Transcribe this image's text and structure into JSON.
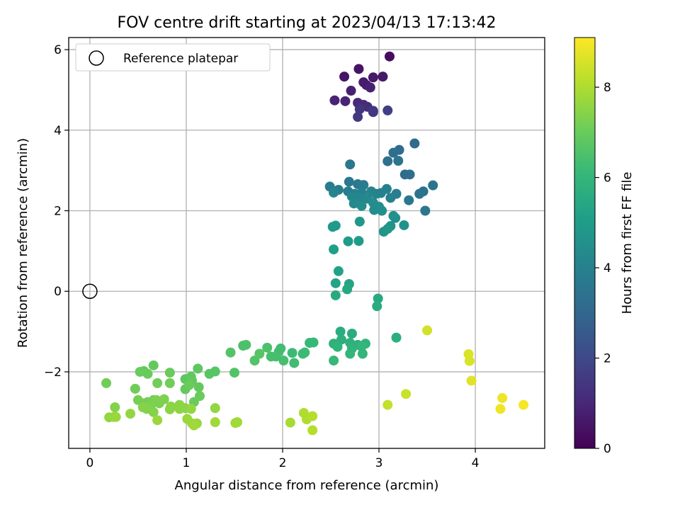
{
  "chart_data": {
    "type": "scatter",
    "title": "FOV centre drift starting at 2023/04/13 17:13:42",
    "xlabel": "Angular distance from reference (arcmin)",
    "ylabel": "Rotation from reference (arcmin)",
    "xlim": [
      -0.22,
      4.72
    ],
    "ylim": [
      -3.9,
      6.3
    ],
    "xticks": [
      0,
      1,
      2,
      3,
      4
    ],
    "yticks": [
      -2,
      0,
      2,
      4,
      6
    ],
    "grid": true,
    "colormap": "viridis",
    "colorbar": {
      "label": "Hours from first FF file",
      "range": [
        0,
        9.1
      ],
      "ticks": [
        0,
        2,
        4,
        6,
        8
      ]
    },
    "legend": {
      "position": "top-left",
      "entries": [
        {
          "label": "Reference platepar",
          "marker": "open-circle"
        }
      ]
    },
    "reference_point": {
      "x": 0,
      "y": 0
    },
    "points": [
      {
        "x": 3.11,
        "y": 5.83,
        "c": 0.3
      },
      {
        "x": 2.64,
        "y": 5.33,
        "c": 0.5
      },
      {
        "x": 2.79,
        "y": 5.52,
        "c": 0.5
      },
      {
        "x": 2.94,
        "y": 5.31,
        "c": 0.6
      },
      {
        "x": 3.04,
        "y": 5.33,
        "c": 0.6
      },
      {
        "x": 2.84,
        "y": 5.19,
        "c": 0.7
      },
      {
        "x": 2.87,
        "y": 5.12,
        "c": 0.7
      },
      {
        "x": 2.71,
        "y": 4.98,
        "c": 0.8
      },
      {
        "x": 2.91,
        "y": 5.06,
        "c": 0.8
      },
      {
        "x": 2.54,
        "y": 4.74,
        "c": 0.9
      },
      {
        "x": 2.65,
        "y": 4.72,
        "c": 0.9
      },
      {
        "x": 2.78,
        "y": 4.68,
        "c": 1.0
      },
      {
        "x": 2.84,
        "y": 4.63,
        "c": 1.1
      },
      {
        "x": 2.88,
        "y": 4.58,
        "c": 1.2
      },
      {
        "x": 2.94,
        "y": 4.45,
        "c": 1.3
      },
      {
        "x": 2.8,
        "y": 4.52,
        "c": 1.4
      },
      {
        "x": 2.78,
        "y": 4.33,
        "c": 1.5
      },
      {
        "x": 2.94,
        "y": 4.48,
        "c": 1.5
      },
      {
        "x": 3.09,
        "y": 4.49,
        "c": 1.7
      },
      {
        "x": 3.37,
        "y": 3.67,
        "c": 3.1
      },
      {
        "x": 3.21,
        "y": 3.51,
        "c": 3.2
      },
      {
        "x": 3.15,
        "y": 3.44,
        "c": 3.3
      },
      {
        "x": 3.09,
        "y": 3.23,
        "c": 3.4
      },
      {
        "x": 3.2,
        "y": 3.24,
        "c": 3.5
      },
      {
        "x": 2.7,
        "y": 3.15,
        "c": 3.6
      },
      {
        "x": 3.27,
        "y": 2.9,
        "c": 3.2
      },
      {
        "x": 3.32,
        "y": 2.9,
        "c": 3.3
      },
      {
        "x": 3.56,
        "y": 2.63,
        "c": 3.5
      },
      {
        "x": 3.46,
        "y": 2.48,
        "c": 3.4
      },
      {
        "x": 3.42,
        "y": 2.42,
        "c": 3.5
      },
      {
        "x": 3.31,
        "y": 2.26,
        "c": 3.6
      },
      {
        "x": 3.48,
        "y": 2.0,
        "c": 3.6
      },
      {
        "x": 2.69,
        "y": 2.72,
        "c": 3.7
      },
      {
        "x": 2.78,
        "y": 2.66,
        "c": 3.7
      },
      {
        "x": 2.84,
        "y": 2.64,
        "c": 3.8
      },
      {
        "x": 2.49,
        "y": 2.6,
        "c": 3.8
      },
      {
        "x": 2.58,
        "y": 2.52,
        "c": 3.9
      },
      {
        "x": 2.68,
        "y": 2.48,
        "c": 3.9
      },
      {
        "x": 2.75,
        "y": 2.42,
        "c": 4.0
      },
      {
        "x": 2.82,
        "y": 2.45,
        "c": 4.0
      },
      {
        "x": 2.92,
        "y": 2.48,
        "c": 4.1
      },
      {
        "x": 2.97,
        "y": 2.42,
        "c": 4.1
      },
      {
        "x": 3.02,
        "y": 2.44,
        "c": 4.0
      },
      {
        "x": 3.08,
        "y": 2.54,
        "c": 4.0
      },
      {
        "x": 3.18,
        "y": 2.42,
        "c": 3.9
      },
      {
        "x": 3.12,
        "y": 2.32,
        "c": 4.0
      },
      {
        "x": 2.53,
        "y": 2.45,
        "c": 4.1
      },
      {
        "x": 2.72,
        "y": 2.35,
        "c": 4.2
      },
      {
        "x": 2.8,
        "y": 2.33,
        "c": 4.2
      },
      {
        "x": 2.88,
        "y": 2.3,
        "c": 4.3
      },
      {
        "x": 2.74,
        "y": 2.18,
        "c": 4.3
      },
      {
        "x": 2.82,
        "y": 2.12,
        "c": 4.4
      },
      {
        "x": 2.94,
        "y": 2.2,
        "c": 4.4
      },
      {
        "x": 3.0,
        "y": 2.1,
        "c": 4.5
      },
      {
        "x": 2.95,
        "y": 2.02,
        "c": 4.4
      },
      {
        "x": 3.03,
        "y": 2.0,
        "c": 4.5
      },
      {
        "x": 3.15,
        "y": 1.87,
        "c": 4.5
      },
      {
        "x": 3.17,
        "y": 1.82,
        "c": 4.6
      },
      {
        "x": 3.26,
        "y": 1.64,
        "c": 4.6
      },
      {
        "x": 3.12,
        "y": 1.62,
        "c": 4.7
      },
      {
        "x": 3.05,
        "y": 1.48,
        "c": 4.7
      },
      {
        "x": 3.09,
        "y": 1.55,
        "c": 4.8
      },
      {
        "x": 2.8,
        "y": 1.73,
        "c": 4.8
      },
      {
        "x": 2.52,
        "y": 1.6,
        "c": 4.9
      },
      {
        "x": 2.55,
        "y": 1.63,
        "c": 4.9
      },
      {
        "x": 2.68,
        "y": 1.24,
        "c": 5.0
      },
      {
        "x": 2.79,
        "y": 1.25,
        "c": 5.0
      },
      {
        "x": 2.53,
        "y": 1.04,
        "c": 5.1
      },
      {
        "x": 2.58,
        "y": 0.5,
        "c": 5.2
      },
      {
        "x": 2.55,
        "y": 0.2,
        "c": 5.3
      },
      {
        "x": 2.69,
        "y": 0.18,
        "c": 5.3
      },
      {
        "x": 2.67,
        "y": 0.05,
        "c": 5.4
      },
      {
        "x": 2.55,
        "y": -0.1,
        "c": 5.5
      },
      {
        "x": 2.99,
        "y": -0.18,
        "c": 5.5
      },
      {
        "x": 2.98,
        "y": -0.37,
        "c": 5.6
      },
      {
        "x": 2.6,
        "y": -1.0,
        "c": 5.6
      },
      {
        "x": 2.72,
        "y": -1.05,
        "c": 5.6
      },
      {
        "x": 2.61,
        "y": -1.2,
        "c": 5.7
      },
      {
        "x": 3.18,
        "y": -1.15,
        "c": 5.7
      },
      {
        "x": 2.7,
        "y": -1.28,
        "c": 5.8
      },
      {
        "x": 2.53,
        "y": -1.3,
        "c": 5.8
      },
      {
        "x": 2.78,
        "y": -1.33,
        "c": 5.8
      },
      {
        "x": 2.86,
        "y": -1.3,
        "c": 5.9
      },
      {
        "x": 2.57,
        "y": -1.38,
        "c": 5.9
      },
      {
        "x": 2.72,
        "y": -1.42,
        "c": 5.9
      },
      {
        "x": 2.82,
        "y": -1.37,
        "c": 6.0
      },
      {
        "x": 2.7,
        "y": -1.55,
        "c": 6.0
      },
      {
        "x": 2.83,
        "y": -1.55,
        "c": 6.0
      },
      {
        "x": 2.53,
        "y": -1.72,
        "c": 6.1
      },
      {
        "x": 2.32,
        "y": -1.27,
        "c": 6.1
      },
      {
        "x": 2.28,
        "y": -1.28,
        "c": 6.1
      },
      {
        "x": 2.21,
        "y": -1.55,
        "c": 6.2
      },
      {
        "x": 2.23,
        "y": -1.52,
        "c": 6.2
      },
      {
        "x": 2.1,
        "y": -1.53,
        "c": 6.2
      },
      {
        "x": 2.12,
        "y": -1.78,
        "c": 6.3
      },
      {
        "x": 1.98,
        "y": -1.42,
        "c": 6.3
      },
      {
        "x": 1.96,
        "y": -1.5,
        "c": 6.3
      },
      {
        "x": 1.88,
        "y": -1.62,
        "c": 6.4
      },
      {
        "x": 1.93,
        "y": -1.62,
        "c": 6.4
      },
      {
        "x": 2.01,
        "y": -1.72,
        "c": 6.4
      },
      {
        "x": 1.84,
        "y": -1.4,
        "c": 6.5
      },
      {
        "x": 1.62,
        "y": -1.33,
        "c": 6.5
      },
      {
        "x": 1.59,
        "y": -1.35,
        "c": 6.5
      },
      {
        "x": 1.46,
        "y": -1.52,
        "c": 6.6
      },
      {
        "x": 1.5,
        "y": -2.02,
        "c": 6.6
      },
      {
        "x": 1.71,
        "y": -1.72,
        "c": 6.6
      },
      {
        "x": 1.76,
        "y": -1.55,
        "c": 6.7
      },
      {
        "x": 1.3,
        "y": -1.99,
        "c": 6.7
      },
      {
        "x": 1.24,
        "y": -2.05,
        "c": 6.7
      },
      {
        "x": 1.12,
        "y": -1.92,
        "c": 6.8
      },
      {
        "x": 1.05,
        "y": -2.12,
        "c": 6.8
      },
      {
        "x": 0.99,
        "y": -2.18,
        "c": 6.8
      },
      {
        "x": 1.06,
        "y": -2.22,
        "c": 6.9
      },
      {
        "x": 0.99,
        "y": -2.43,
        "c": 6.9
      },
      {
        "x": 1.13,
        "y": -2.38,
        "c": 6.9
      },
      {
        "x": 1.03,
        "y": -2.33,
        "c": 7.0
      },
      {
        "x": 1.14,
        "y": -2.6,
        "c": 7.0
      },
      {
        "x": 1.08,
        "y": -2.75,
        "c": 7.0
      },
      {
        "x": 0.66,
        "y": -1.84,
        "c": 6.9
      },
      {
        "x": 0.56,
        "y": -1.98,
        "c": 6.9
      },
      {
        "x": 0.52,
        "y": -2.0,
        "c": 7.0
      },
      {
        "x": 0.6,
        "y": -2.05,
        "c": 7.0
      },
      {
        "x": 0.83,
        "y": -2.02,
        "c": 7.0
      },
      {
        "x": 0.7,
        "y": -2.28,
        "c": 7.1
      },
      {
        "x": 0.83,
        "y": -2.28,
        "c": 7.1
      },
      {
        "x": 0.17,
        "y": -2.28,
        "c": 7.1
      },
      {
        "x": 0.47,
        "y": -2.42,
        "c": 7.1
      },
      {
        "x": 0.5,
        "y": -2.7,
        "c": 7.2
      },
      {
        "x": 0.56,
        "y": -2.78,
        "c": 7.2
      },
      {
        "x": 0.6,
        "y": -2.75,
        "c": 7.2
      },
      {
        "x": 0.66,
        "y": -2.7,
        "c": 7.2
      },
      {
        "x": 0.69,
        "y": -2.7,
        "c": 7.3
      },
      {
        "x": 0.72,
        "y": -2.78,
        "c": 7.3
      },
      {
        "x": 0.77,
        "y": -2.68,
        "c": 7.3
      },
      {
        "x": 0.63,
        "y": -2.85,
        "c": 7.3
      },
      {
        "x": 0.55,
        "y": -2.88,
        "c": 7.4
      },
      {
        "x": 0.59,
        "y": -2.92,
        "c": 7.4
      },
      {
        "x": 0.26,
        "y": -2.88,
        "c": 7.4
      },
      {
        "x": 0.66,
        "y": -3.0,
        "c": 7.4
      },
      {
        "x": 0.84,
        "y": -2.86,
        "c": 7.5
      },
      {
        "x": 0.83,
        "y": -2.93,
        "c": 7.5
      },
      {
        "x": 0.93,
        "y": -2.82,
        "c": 7.5
      },
      {
        "x": 0.93,
        "y": -2.92,
        "c": 7.5
      },
      {
        "x": 0.99,
        "y": -2.9,
        "c": 7.5
      },
      {
        "x": 1.05,
        "y": -2.92,
        "c": 7.6
      },
      {
        "x": 1.3,
        "y": -2.9,
        "c": 7.6
      },
      {
        "x": 0.42,
        "y": -3.04,
        "c": 7.6
      },
      {
        "x": 0.2,
        "y": -3.13,
        "c": 7.6
      },
      {
        "x": 0.25,
        "y": -3.12,
        "c": 7.6
      },
      {
        "x": 0.27,
        "y": -3.12,
        "c": 7.7
      },
      {
        "x": 0.7,
        "y": -3.2,
        "c": 7.7
      },
      {
        "x": 1.01,
        "y": -3.17,
        "c": 7.7
      },
      {
        "x": 1.11,
        "y": -3.28,
        "c": 7.7
      },
      {
        "x": 1.06,
        "y": -3.28,
        "c": 7.7
      },
      {
        "x": 1.08,
        "y": -3.33,
        "c": 7.8
      },
      {
        "x": 1.3,
        "y": -3.25,
        "c": 7.8
      },
      {
        "x": 1.51,
        "y": -3.27,
        "c": 7.8
      },
      {
        "x": 1.53,
        "y": -3.25,
        "c": 7.8
      },
      {
        "x": 2.08,
        "y": -3.26,
        "c": 7.9
      },
      {
        "x": 2.22,
        "y": -3.02,
        "c": 8.0
      },
      {
        "x": 2.25,
        "y": -3.18,
        "c": 8.0
      },
      {
        "x": 2.31,
        "y": -3.1,
        "c": 8.1
      },
      {
        "x": 2.31,
        "y": -3.45,
        "c": 8.1
      },
      {
        "x": 3.09,
        "y": -2.82,
        "c": 8.3
      },
      {
        "x": 3.28,
        "y": -2.55,
        "c": 8.4
      },
      {
        "x": 3.5,
        "y": -0.97,
        "c": 8.5
      },
      {
        "x": 3.93,
        "y": -1.56,
        "c": 8.6
      },
      {
        "x": 3.94,
        "y": -1.73,
        "c": 8.6
      },
      {
        "x": 3.96,
        "y": -2.22,
        "c": 8.7
      },
      {
        "x": 4.26,
        "y": -2.92,
        "c": 8.9
      },
      {
        "x": 4.28,
        "y": -2.65,
        "c": 8.9
      },
      {
        "x": 4.5,
        "y": -2.82,
        "c": 9.0
      }
    ]
  }
}
